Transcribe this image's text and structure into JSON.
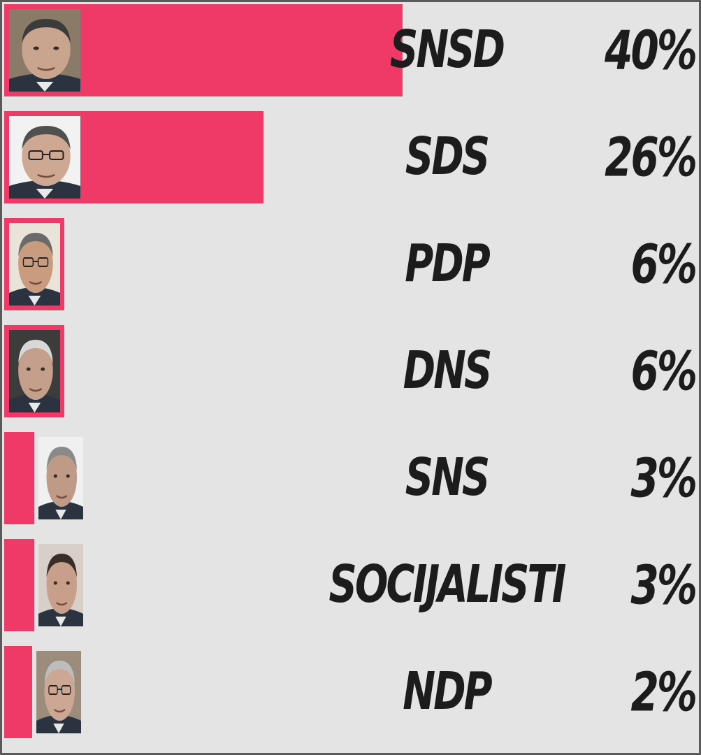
{
  "chart_data": {
    "type": "bar",
    "orientation": "horizontal",
    "categories": [
      "SNSD",
      "SDS",
      "PDP",
      "DNS",
      "SNS",
      "SOCIJALISTI",
      "NDP"
    ],
    "values": [
      40,
      26,
      6,
      6,
      3,
      3,
      2
    ],
    "value_labels": [
      "40%",
      "26%",
      "6%",
      "6%",
      "3%",
      "3%",
      "2%"
    ],
    "bar_color": "#ef3a67",
    "background_color": "#e4e4e4",
    "text_color": "#1c1c1c",
    "legend": "none",
    "grid": false,
    "has_portrait_photos": true
  }
}
